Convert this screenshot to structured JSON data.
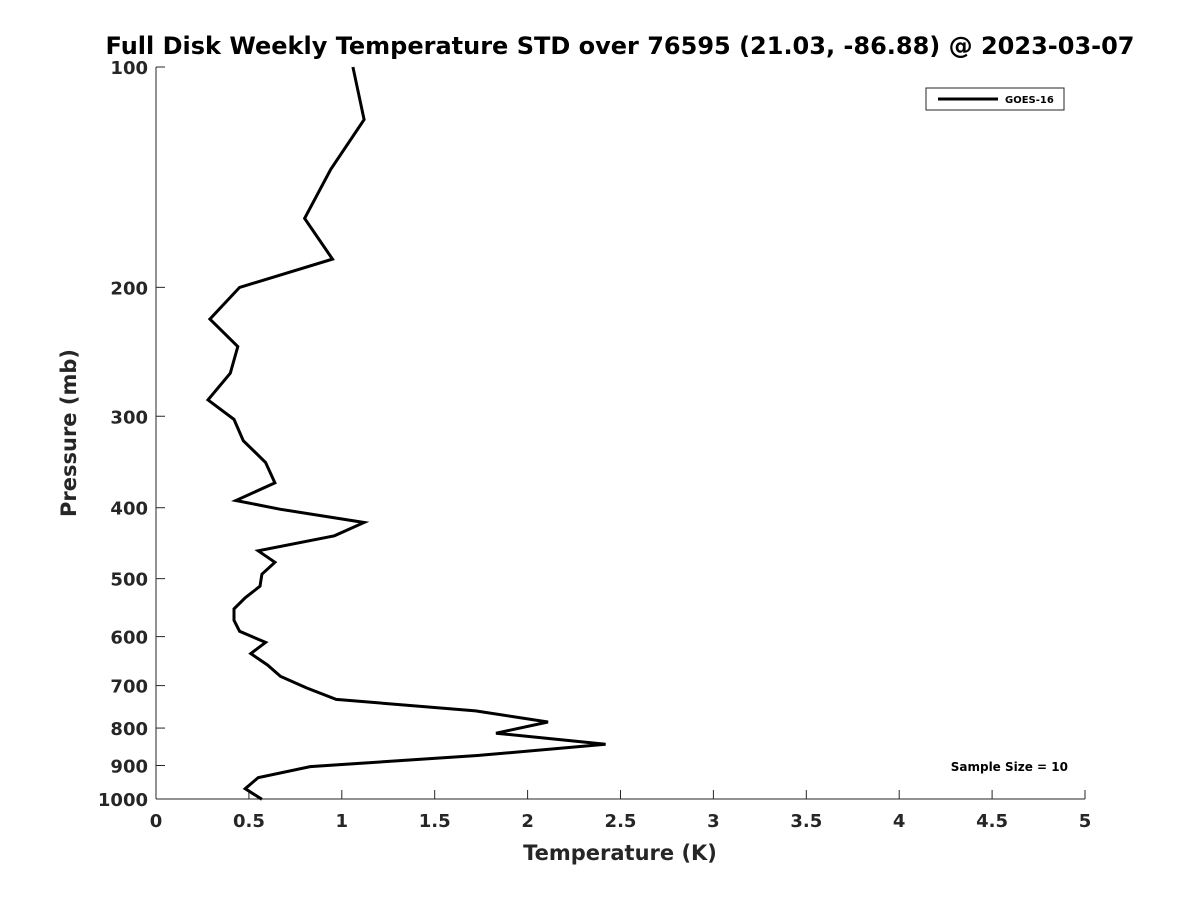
{
  "chart_data": {
    "type": "line",
    "title": "Full Disk Weekly Temperature STD over 76595 (21.03, -86.88) @ 2023-03-07",
    "xlabel": "Temperature (K)",
    "ylabel": "Pressure (mb)",
    "xlim": [
      0,
      5
    ],
    "ylim": [
      100,
      1000
    ],
    "y_scale": "log",
    "y_reversed": true,
    "grid": false,
    "legend_position": "top-right",
    "x_ticks": [
      0,
      0.5,
      1,
      1.5,
      2,
      2.5,
      3,
      3.5,
      4,
      4.5,
      5
    ],
    "x_tick_labels": [
      "0",
      "0.5",
      "1",
      "1.5",
      "2",
      "2.5",
      "3",
      "3.5",
      "4",
      "4.5",
      "5"
    ],
    "y_ticks": [
      100,
      200,
      300,
      400,
      500,
      600,
      700,
      800,
      900,
      1000
    ],
    "y_tick_labels": [
      "100",
      "200",
      "300",
      "400",
      "500",
      "600",
      "700",
      "800",
      "900",
      "1000"
    ],
    "series": [
      {
        "name": "GOES-16",
        "color": "#000000",
        "points": [
          [
            1.06,
            100
          ],
          [
            1.12,
            118
          ],
          [
            0.94,
            138
          ],
          [
            0.8,
            161
          ],
          [
            0.95,
            183
          ],
          [
            0.45,
            200
          ],
          [
            0.29,
            221
          ],
          [
            0.44,
            241
          ],
          [
            0.4,
            262
          ],
          [
            0.28,
            285
          ],
          [
            0.42,
            303
          ],
          [
            0.47,
            324
          ],
          [
            0.59,
            347
          ],
          [
            0.64,
            370
          ],
          [
            0.43,
            391
          ],
          [
            0.67,
            402
          ],
          [
            1.12,
            419
          ],
          [
            0.96,
            437
          ],
          [
            0.55,
            458
          ],
          [
            0.64,
            475
          ],
          [
            0.57,
            493
          ],
          [
            0.56,
            512
          ],
          [
            0.48,
            531
          ],
          [
            0.42,
            550
          ],
          [
            0.42,
            570
          ],
          [
            0.45,
            590
          ],
          [
            0.59,
            611
          ],
          [
            0.51,
            633
          ],
          [
            0.6,
            656
          ],
          [
            0.67,
            680
          ],
          [
            0.81,
            705
          ],
          [
            0.97,
            731
          ],
          [
            1.72,
            758
          ],
          [
            2.11,
            785
          ],
          [
            1.83,
            813
          ],
          [
            2.42,
            842
          ],
          [
            1.73,
            872
          ],
          [
            0.83,
            903
          ],
          [
            0.55,
            935
          ],
          [
            0.48,
            968
          ],
          [
            0.57,
            1001
          ]
        ]
      }
    ],
    "legend_label": "GOES-16",
    "annotation": "Sample Size = 10"
  }
}
